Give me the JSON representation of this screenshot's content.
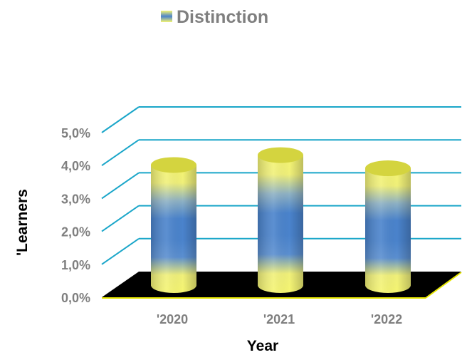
{
  "chart_data": {
    "type": "bar",
    "categories": [
      "'2020",
      "'2021",
      "'2022"
    ],
    "series": [
      {
        "name": "Distinction",
        "values": [
          3.8,
          4.1,
          3.7
        ]
      }
    ],
    "xlabel": "Year",
    "ylabel": "'Learners",
    "ylim": [
      0,
      5.0
    ],
    "yticks": [
      "0,0%",
      "1,0%",
      "2,0%",
      "3,0%",
      "4,0%",
      "5,0%"
    ],
    "grid": true,
    "legend": "top-center",
    "style": "3d-cylinder",
    "colors": {
      "gradient_light": "#f5f571",
      "gradient_dark": "#4a83cc",
      "floor": "#000000",
      "grid": "#1aa6c9"
    }
  }
}
